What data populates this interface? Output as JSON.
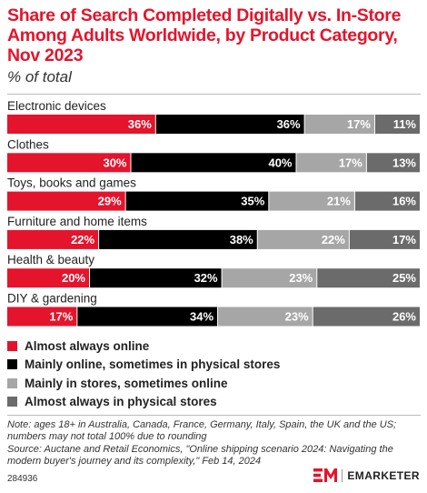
{
  "header": {
    "title": "Share of Search Completed Digitally vs. In-Store Among Adults Worldwide, by Product Category, Nov 2023",
    "subtitle": "% of total"
  },
  "chart_data": {
    "type": "bar",
    "orientation": "horizontal",
    "stacked": true,
    "value_format": "percent",
    "categories": [
      "Electronic devices",
      "Clothes",
      "Toys, books and games",
      "Furniture and home items",
      "Health & beauty",
      "DIY & gardening"
    ],
    "series": [
      {
        "name": "Almost always online",
        "color": "#e4142c",
        "values": [
          36,
          30,
          29,
          22,
          20,
          17
        ]
      },
      {
        "name": "Mainly online, sometimes in physical stores",
        "color": "#000000",
        "values": [
          36,
          40,
          35,
          38,
          32,
          34
        ]
      },
      {
        "name": "Mainly in stores, sometimes online",
        "color": "#a6a6a6",
        "values": [
          17,
          17,
          21,
          22,
          23,
          23
        ]
      },
      {
        "name": "Almost always in physical stores",
        "color": "#6b6b6b",
        "values": [
          11,
          13,
          16,
          17,
          25,
          26
        ]
      }
    ],
    "legend_position": "bottom",
    "grid": false
  },
  "footer": {
    "note": "Note: ages 18+ in Australia, Canada, France, Germany, Italy, Spain, the UK and the US; numbers may not total 100% due to rounding",
    "source": "Source: Auctane and Retail Economics, \"Online shipping scenario 2024: Navigating the modern buyer's journey and its complexity,\" Feb 14, 2024",
    "chart_id": "284936",
    "brand": "EMARKETER",
    "logo_icon": "emarketer-logo-icon"
  }
}
